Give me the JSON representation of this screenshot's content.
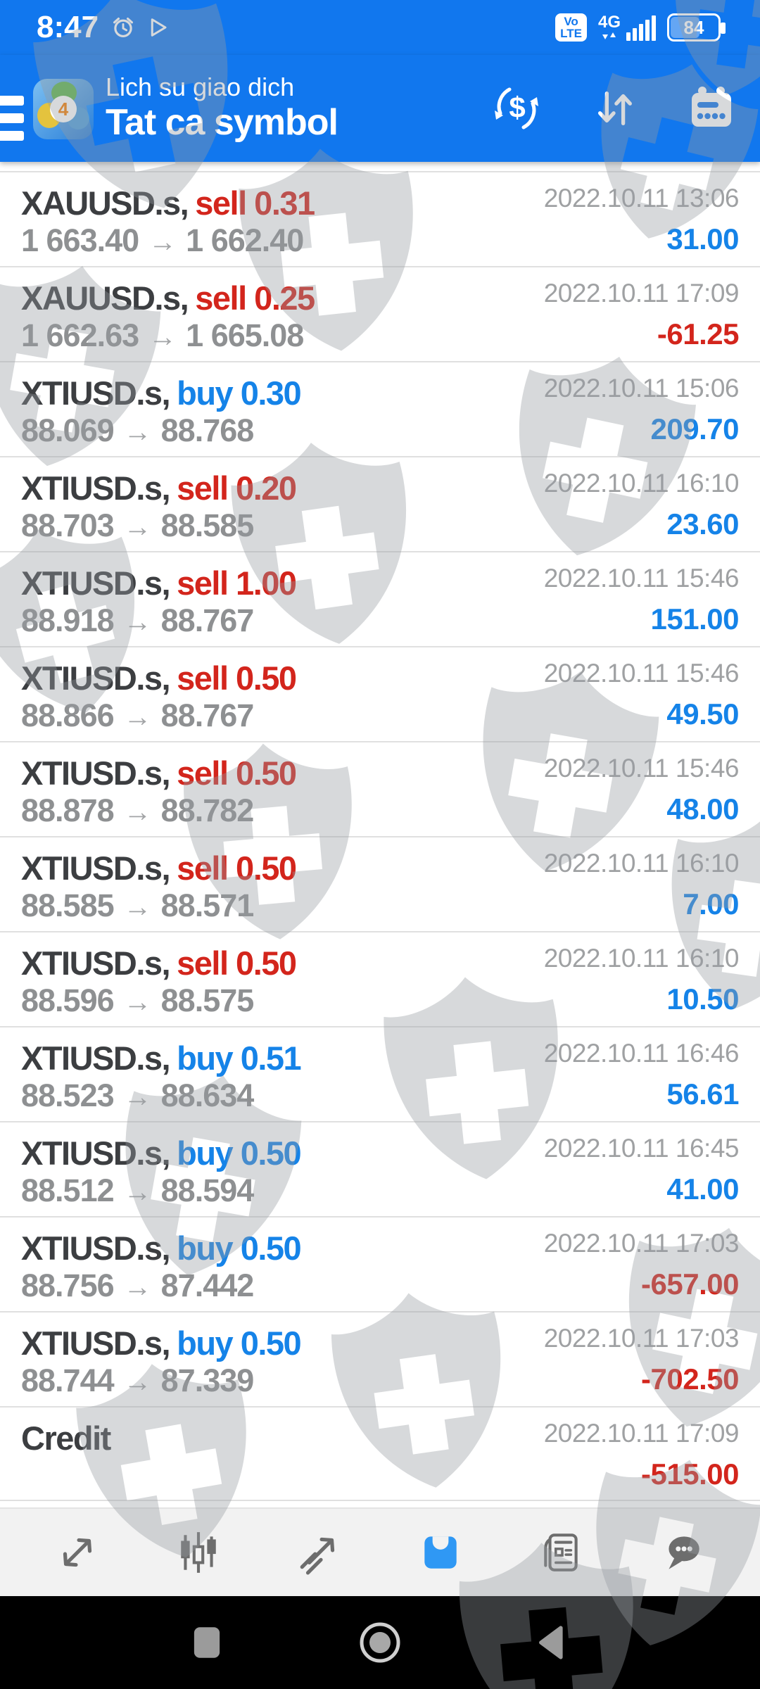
{
  "status_bar": {
    "time": "8:47",
    "volte_line1": "Vo",
    "volte_line2": "LTE",
    "network_type": "4G",
    "battery_percent": "84",
    "icons": [
      "alarm-icon",
      "play-store-icon",
      "volte-badge",
      "signal-bars-icon",
      "battery-indicator"
    ]
  },
  "header": {
    "title": "Lich su giao dich",
    "subtitle": "Tat ca symbol",
    "app_badge": "4",
    "icons": [
      "menu-icon",
      "mt4-app-icon",
      "exchange-dollar-icon",
      "sort-arrows-icon",
      "calendar-icon"
    ]
  },
  "labels": {
    "price_arrow": "→"
  },
  "rows": [
    {
      "symbol": "XAUUSD.s,",
      "side": "sell 0.31",
      "open": "1 663.40",
      "close": "1 662.40",
      "datetime": "2022.10.11 13:06",
      "profit": "31.00"
    },
    {
      "symbol": "XAUUSD.s,",
      "side": "sell 0.25",
      "open": "1 662.63",
      "close": "1 665.08",
      "datetime": "2022.10.11 17:09",
      "profit": "-61.25"
    },
    {
      "symbol": "XTIUSD.s,",
      "side": "buy 0.30",
      "open": "88.069",
      "close": "88.768",
      "datetime": "2022.10.11 15:06",
      "profit": "209.70"
    },
    {
      "symbol": "XTIUSD.s,",
      "side": "sell 0.20",
      "open": "88.703",
      "close": "88.585",
      "datetime": "2022.10.11 16:10",
      "profit": "23.60"
    },
    {
      "symbol": "XTIUSD.s,",
      "side": "sell 1.00",
      "open": "88.918",
      "close": "88.767",
      "datetime": "2022.10.11 15:46",
      "profit": "151.00"
    },
    {
      "symbol": "XTIUSD.s,",
      "side": "sell 0.50",
      "open": "88.866",
      "close": "88.767",
      "datetime": "2022.10.11 15:46",
      "profit": "49.50"
    },
    {
      "symbol": "XTIUSD.s,",
      "side": "sell 0.50",
      "open": "88.878",
      "close": "88.782",
      "datetime": "2022.10.11 15:46",
      "profit": "48.00"
    },
    {
      "symbol": "XTIUSD.s,",
      "side": "sell 0.50",
      "open": "88.585",
      "close": "88.571",
      "datetime": "2022.10.11 16:10",
      "profit": "7.00"
    },
    {
      "symbol": "XTIUSD.s,",
      "side": "sell 0.50",
      "open": "88.596",
      "close": "88.575",
      "datetime": "2022.10.11 16:10",
      "profit": "10.50"
    },
    {
      "symbol": "XTIUSD.s,",
      "side": "buy 0.51",
      "open": "88.523",
      "close": "88.634",
      "datetime": "2022.10.11 16:46",
      "profit": "56.61"
    },
    {
      "symbol": "XTIUSD.s,",
      "side": "buy 0.50",
      "open": "88.512",
      "close": "88.594",
      "datetime": "2022.10.11 16:45",
      "profit": "41.00"
    },
    {
      "symbol": "XTIUSD.s,",
      "side": "buy 0.50",
      "open": "88.756",
      "close": "87.442",
      "datetime": "2022.10.11 17:03",
      "profit": "-657.00"
    },
    {
      "symbol": "XTIUSD.s,",
      "side": "buy 0.50",
      "open": "88.744",
      "close": "87.339",
      "datetime": "2022.10.11 17:03",
      "profit": "-702.50"
    },
    {
      "symbol": "Credit",
      "side": "",
      "open": "",
      "close": "",
      "datetime": "2022.10.11 17:09",
      "profit": "-515.00"
    }
  ],
  "toolbar": {
    "items": [
      {
        "icon": "trend-arrows-icon",
        "active": false
      },
      {
        "icon": "candlestick-chart-icon",
        "active": false
      },
      {
        "icon": "trade-line-icon",
        "active": false
      },
      {
        "icon": "history-inbox-icon",
        "active": true
      },
      {
        "icon": "news-icon",
        "active": false
      },
      {
        "icon": "chat-bubble-icon",
        "active": false
      }
    ]
  },
  "nav_bar": {
    "items": [
      "recents-square-icon",
      "home-circle-icon",
      "back-triangle-icon"
    ]
  },
  "colors": {
    "header_blue": "#1177ee",
    "accent_blue": "#1583e8",
    "negative_red": "#d3251c",
    "symbol_dark": "#3c3e41",
    "price_gray": "#8e9092",
    "date_gray": "#9fa1a3",
    "divider": "#e0e0e0",
    "toolbar_bg": "#f2f2f2",
    "toolbar_icon": "#6d6d6d",
    "toolbar_active": "#2f98f4",
    "nav_bg": "#000000",
    "nav_icon": "#9b9b9b"
  }
}
